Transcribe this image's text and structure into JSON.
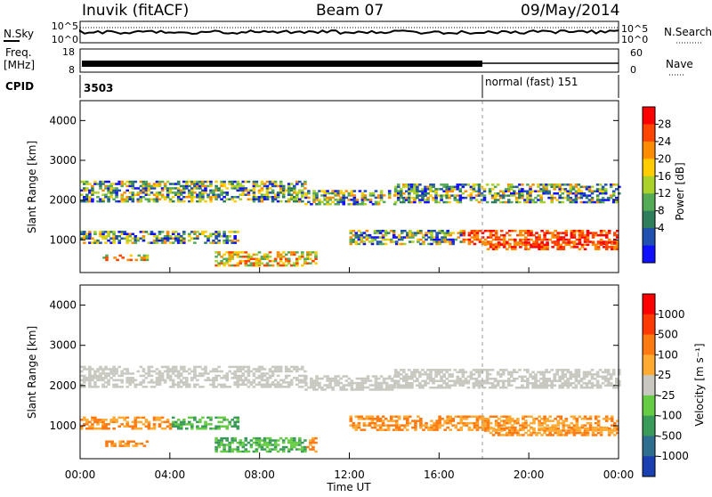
{
  "header": {
    "station": "Inuvik (fitACF)",
    "beam": "Beam 07",
    "date": "09/May/2014"
  },
  "top_panels": {
    "nsky_label": "N.Sky",
    "nsky_ticks": [
      "10^5",
      "10^0"
    ],
    "nsearch_label": "N.Search",
    "nsearch_ticks": [
      "10^5",
      "10^0"
    ],
    "freq_label": "Freq.",
    "freq_unit": "[MHz]",
    "freq_ticks": [
      "18",
      "8"
    ],
    "nave_label": "Nave",
    "nave_ticks": [
      "60",
      "0"
    ],
    "cpid_label": "CPID",
    "cpid_segments": [
      {
        "label": "3503",
        "start_hour": 0
      },
      {
        "label": "normal (fast) 151",
        "start_hour": 18
      }
    ]
  },
  "chart_data": [
    {
      "type": "heatmap",
      "name": "power",
      "ylabel": "Slant Range [km]",
      "xlabel": "Time UT",
      "xlim": [
        0,
        24
      ],
      "ylim": [
        180,
        4500
      ],
      "y_ticks": [
        1000,
        2000,
        3000,
        4000
      ],
      "colorbar": {
        "label": "Power [dB]",
        "ticks": [
          "4",
          "8",
          "12",
          "16",
          "20",
          "24",
          "28"
        ],
        "colors": [
          "#1010ff",
          "#2050b0",
          "#2e7d5b",
          "#55aa55",
          "#aad22a",
          "#ffcc00",
          "#ff8c00",
          "#ff4500",
          "#ff0000"
        ]
      }
    },
    {
      "type": "heatmap",
      "name": "velocity",
      "ylabel": "Slant Range [km]",
      "xlabel": "Time UT",
      "xlim": [
        0,
        24
      ],
      "ylim": [
        180,
        4500
      ],
      "y_ticks": [
        1000,
        2000,
        3000,
        4000
      ],
      "colorbar": {
        "label": "Velocity [m s⁻¹]",
        "ticks": [
          "1000",
          "500",
          "100",
          "25",
          "-25",
          "-100",
          "-500",
          "-1000"
        ],
        "colors": [
          "#1a3fb0",
          "#2e6e8e",
          "#3a9a5a",
          "#66cc44",
          "#c8c8c0",
          "#ffaa33",
          "#ff7a10",
          "#ff3a00",
          "#ff0000"
        ]
      }
    }
  ],
  "x_axis": {
    "ticks": [
      "00:00",
      "04:00",
      "08:00",
      "12:00",
      "16:00",
      "20:00",
      "00:00"
    ],
    "label": "Time UT"
  }
}
